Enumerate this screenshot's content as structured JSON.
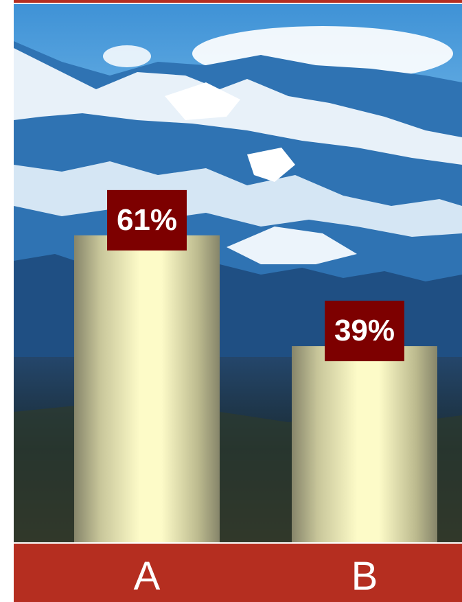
{
  "colors": {
    "accent": "#b52e20",
    "label_box": "#7d0000",
    "bar_light": "#fdfbc8",
    "bar_dark": "#86856a"
  },
  "background": "snowy-mountain-photo",
  "chart_data": {
    "type": "bar",
    "categories": [
      "A",
      "B"
    ],
    "values": [
      61,
      39
    ],
    "data_labels": [
      "61%",
      "39%"
    ],
    "ylim": [
      0,
      100
    ],
    "grid": false,
    "legend": "none"
  }
}
